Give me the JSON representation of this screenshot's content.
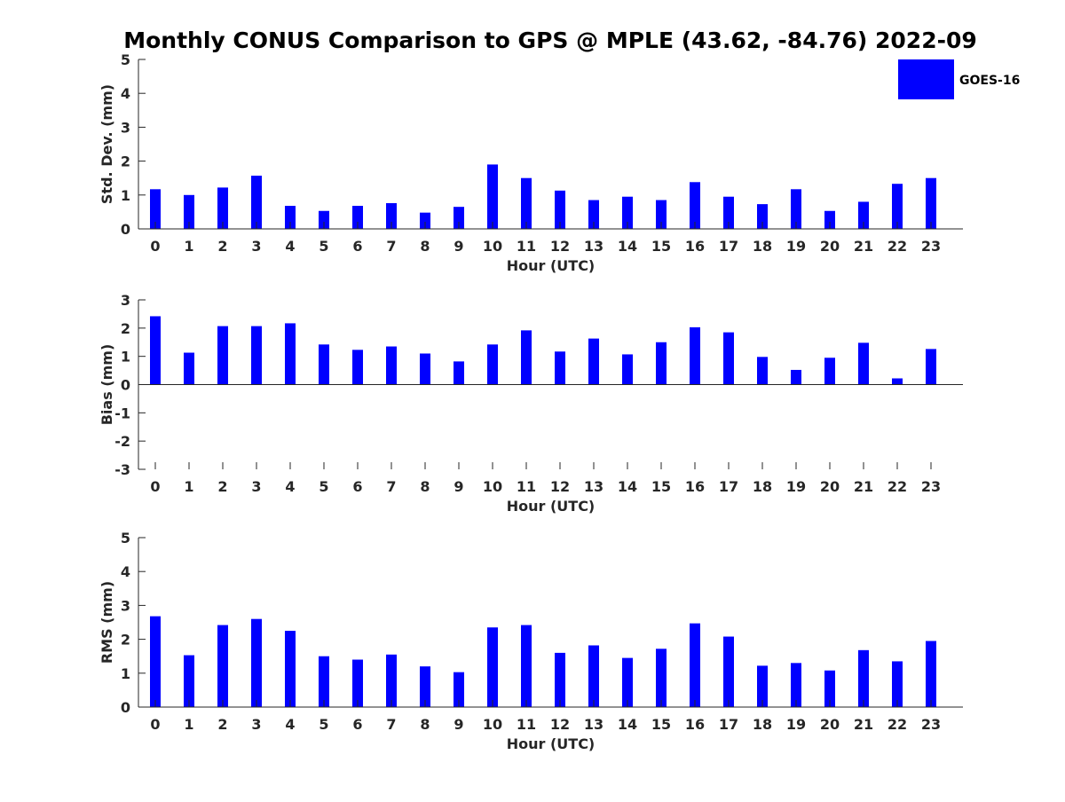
{
  "figure": {
    "title": "Monthly CONUS Comparison to GPS @ MPLE (43.62, -84.76) 2022-09",
    "bar_color": "#0000ff",
    "axis_color": "#262626"
  },
  "legend": {
    "label": "GOES-16",
    "color": "#0000ff",
    "placement": "top-right"
  },
  "chart_data": [
    {
      "type": "bar",
      "name": "std-dev",
      "xlabel": "Hour (UTC)",
      "ylabel": "Std. Dev. (mm)",
      "ylim": [
        0,
        5
      ],
      "yticks": [
        0,
        1,
        2,
        3,
        4,
        5
      ],
      "categories": [
        "0",
        "1",
        "2",
        "3",
        "4",
        "5",
        "6",
        "7",
        "8",
        "9",
        "10",
        "11",
        "12",
        "13",
        "14",
        "15",
        "16",
        "17",
        "18",
        "19",
        "20",
        "21",
        "22",
        "23"
      ],
      "series": [
        {
          "name": "GOES-16",
          "values": [
            1.17,
            1.0,
            1.22,
            1.57,
            0.68,
            0.53,
            0.68,
            0.76,
            0.48,
            0.65,
            1.9,
            1.5,
            1.13,
            0.85,
            0.95,
            0.85,
            1.38,
            0.95,
            0.73,
            1.17,
            0.53,
            0.8,
            1.33,
            1.5
          ]
        }
      ]
    },
    {
      "type": "bar",
      "name": "bias",
      "xlabel": "Hour (UTC)",
      "ylabel": "Bias (mm)",
      "ylim": [
        -3,
        3
      ],
      "yticks": [
        -3,
        -2,
        -1,
        0,
        1,
        2,
        3
      ],
      "categories": [
        "0",
        "1",
        "2",
        "3",
        "4",
        "5",
        "6",
        "7",
        "8",
        "9",
        "10",
        "11",
        "12",
        "13",
        "14",
        "15",
        "16",
        "17",
        "18",
        "19",
        "20",
        "21",
        "22",
        "23"
      ],
      "series": [
        {
          "name": "GOES-16",
          "values": [
            2.42,
            1.13,
            2.07,
            2.07,
            2.17,
            1.42,
            1.23,
            1.35,
            1.1,
            0.82,
            1.42,
            1.92,
            1.17,
            1.63,
            1.07,
            1.5,
            2.03,
            1.85,
            0.98,
            0.52,
            0.95,
            1.48,
            0.22,
            1.26
          ]
        }
      ]
    },
    {
      "type": "bar",
      "name": "rms",
      "xlabel": "Hour (UTC)",
      "ylabel": "RMS (mm)",
      "ylim": [
        0,
        5
      ],
      "yticks": [
        0,
        1,
        2,
        3,
        4,
        5
      ],
      "categories": [
        "0",
        "1",
        "2",
        "3",
        "4",
        "5",
        "6",
        "7",
        "8",
        "9",
        "10",
        "11",
        "12",
        "13",
        "14",
        "15",
        "16",
        "17",
        "18",
        "19",
        "20",
        "21",
        "22",
        "23"
      ],
      "series": [
        {
          "name": "GOES-16",
          "values": [
            2.68,
            1.53,
            2.42,
            2.6,
            2.25,
            1.5,
            1.4,
            1.55,
            1.2,
            1.03,
            2.35,
            2.42,
            1.6,
            1.82,
            1.45,
            1.72,
            2.47,
            2.08,
            1.22,
            1.3,
            1.08,
            1.68,
            1.35,
            1.95
          ]
        }
      ]
    }
  ]
}
